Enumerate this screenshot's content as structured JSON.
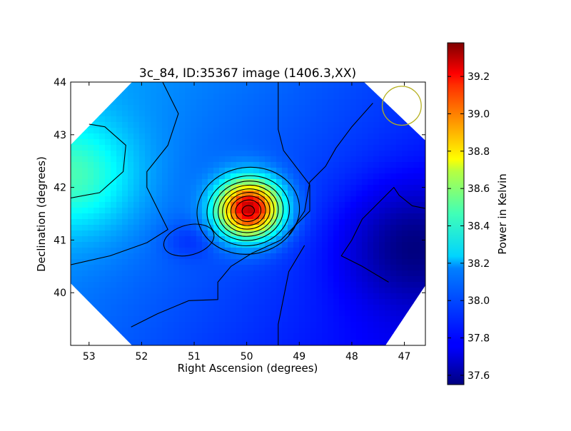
{
  "chart_data": {
    "type": "heatmap",
    "title": "3c_84, ID:35367 image (1406.3,XX)",
    "xlabel": "Right Ascension (degrees)",
    "ylabel": "Declination (degrees)",
    "xlim": [
      53.35,
      46.6
    ],
    "ylim": [
      39.0,
      44.0
    ],
    "x_ticks": [
      53,
      52,
      51,
      50,
      49,
      48,
      47
    ],
    "y_ticks": [
      40,
      41,
      42,
      43,
      44
    ],
    "colorbar": {
      "label": "Power in Kelvin",
      "range": [
        37.55,
        39.38
      ],
      "ticks": [
        37.6,
        37.8,
        38.0,
        38.2,
        38.4,
        38.6,
        38.8,
        39.0,
        39.2
      ],
      "colormap": "jet"
    },
    "peak": {
      "ra": 49.95,
      "dec": 41.6,
      "value": 39.35
    },
    "secondary_features": [
      {
        "ra": 53.2,
        "dec": 42.2,
        "value": 38.3,
        "note": "warm region upper-left"
      },
      {
        "ra": 47.0,
        "dec": 40.8,
        "value": 37.6,
        "note": "cold region right"
      },
      {
        "ra": 51.1,
        "dec": 41.0,
        "value": 37.9,
        "note": "local dip"
      }
    ],
    "beam_circle": {
      "ra": 47.05,
      "dec": 43.55,
      "radius_deg": 0.37,
      "color": "#b5b020"
    }
  }
}
